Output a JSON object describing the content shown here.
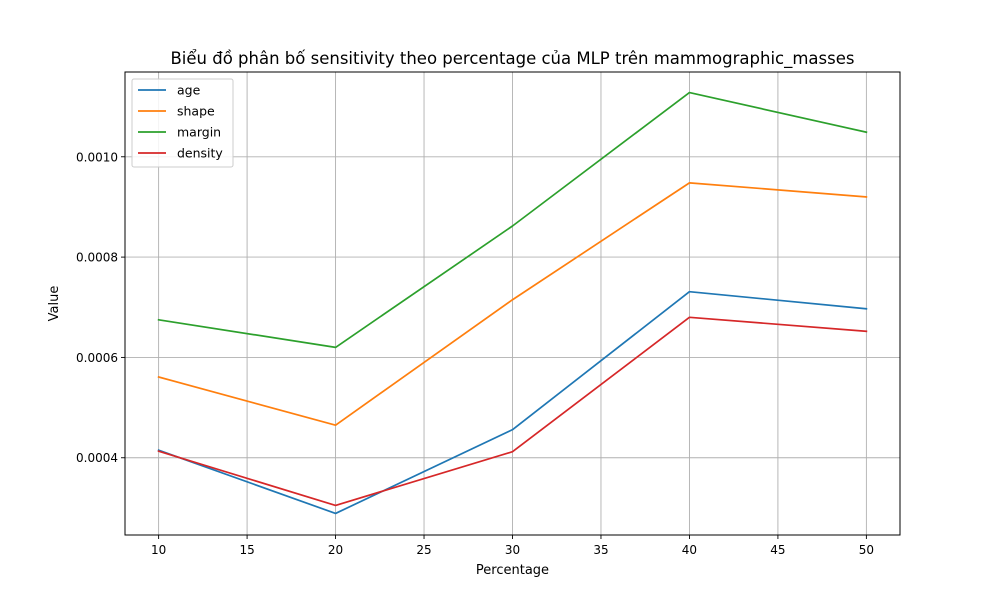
{
  "chart_data": {
    "type": "line",
    "title": "Biểu đồ phân bố sensitivity theo percentage của MLP trên mammographic_masses",
    "xlabel": "Percentage",
    "ylabel": "Value",
    "x": [
      10,
      20,
      30,
      40,
      50
    ],
    "xticks": [
      10,
      15,
      20,
      25,
      30,
      35,
      40,
      45,
      50
    ],
    "xtick_labels": [
      "10",
      "15",
      "20",
      "25",
      "30",
      "35",
      "40",
      "45",
      "50"
    ],
    "yticks": [
      0.0004,
      0.0006,
      0.0008,
      0.001
    ],
    "ytick_labels": [
      "0.0004",
      "0.0006",
      "0.0008",
      "0.0010"
    ],
    "xlim": [
      8.1,
      51.9
    ],
    "ylim": [
      0.000246,
      0.001169
    ],
    "grid": true,
    "legend_position": "top-left",
    "series": [
      {
        "name": "age",
        "color": "#1f77b4",
        "values": [
          0.000415,
          0.000289,
          0.000456,
          0.000731,
          0.000697
        ]
      },
      {
        "name": "shape",
        "color": "#ff7f0e",
        "values": [
          0.000561,
          0.000465,
          0.000715,
          0.000948,
          0.00092
        ]
      },
      {
        "name": "margin",
        "color": "#2ca02c",
        "values": [
          0.000675,
          0.00062,
          0.000862,
          0.001128,
          0.001049
        ]
      },
      {
        "name": "density",
        "color": "#d62728",
        "values": [
          0.000413,
          0.000305,
          0.000412,
          0.00068,
          0.000652
        ]
      }
    ]
  }
}
